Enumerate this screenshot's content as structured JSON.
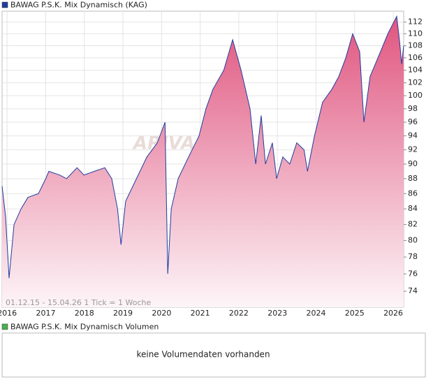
{
  "chart_data": {
    "type": "area",
    "title": "BAWAG P.S.K. Mix Dynamisch (KAG)",
    "watermark": "ARIVA",
    "footnote": "01.12.15 - 15.04.26   1 Tick = 1 Woche",
    "x": [
      2015.87,
      2015.96,
      2016.05,
      2016.18,
      2016.36,
      2016.54,
      2016.81,
      2017.0,
      2017.08,
      2017.36,
      2017.54,
      2017.81,
      2017.99,
      2018.26,
      2018.53,
      2018.71,
      2018.86,
      2018.95,
      2019.07,
      2019.35,
      2019.62,
      2019.89,
      2020.09,
      2020.16,
      2020.25,
      2020.43,
      2020.7,
      2020.97,
      2021.15,
      2021.33,
      2021.61,
      2021.84,
      2022.06,
      2022.29,
      2022.44,
      2022.58,
      2022.69,
      2022.87,
      2022.98,
      2023.14,
      2023.32,
      2023.5,
      2023.69,
      2023.78,
      2023.96,
      2024.17,
      2024.41,
      2024.59,
      2024.77,
      2024.95,
      2025.13,
      2025.24,
      2025.4,
      2025.67,
      2025.86,
      2026.09,
      2026.16,
      2026.22,
      2026.27
    ],
    "series": [
      {
        "name": "BAWAG P.S.K. Mix Dynamisch",
        "color": "#1f3c9e",
        "values": [
          87,
          83,
          75.5,
          82,
          84,
          85.5,
          86,
          88,
          89,
          88.5,
          88,
          89.5,
          88.5,
          89,
          89.5,
          88,
          84,
          79.5,
          85,
          88,
          91,
          93,
          96,
          76,
          84,
          88,
          91,
          94,
          98,
          101,
          104,
          109,
          104,
          98,
          90,
          97,
          90,
          93,
          88,
          91,
          90,
          93,
          92,
          89,
          94,
          99,
          101,
          103,
          106,
          110,
          107,
          96,
          103,
          107,
          110,
          113,
          109,
          105,
          108
        ]
      }
    ],
    "xlim": [
      2015.87,
      2026.27
    ],
    "xticks": [
      2016,
      2017,
      2018,
      2019,
      2020,
      2021,
      2022,
      2023,
      2024,
      2025,
      2026
    ],
    "ylim": [
      72.2,
      113.9
    ],
    "yticks": [
      74,
      76,
      78,
      80,
      82,
      84,
      86,
      88,
      90,
      92,
      94,
      96,
      98,
      100,
      102,
      104,
      106,
      108,
      110,
      112
    ],
    "log_y": true,
    "grid": true,
    "fill_top": "#e0557f",
    "fill_bottom": "#fdf5f8",
    "volume": {
      "title": "BAWAG P.S.K. Mix Dynamisch Volumen",
      "color": "#4caf50",
      "message": "keine Volumendaten vorhanden"
    }
  }
}
